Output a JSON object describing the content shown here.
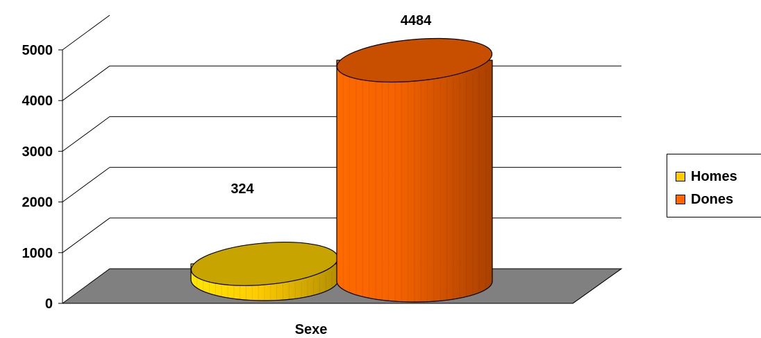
{
  "chart_data": {
    "type": "bar",
    "style": "3d-cylinder",
    "categories": [
      "Sexe"
    ],
    "xlabel": "Sexe",
    "ylim": [
      0,
      5000
    ],
    "yticks": [
      0,
      1000,
      2000,
      3000,
      4000,
      5000
    ],
    "grid": true,
    "legend_position": "right",
    "series": [
      {
        "name": "Homes",
        "values": [
          324
        ],
        "color": "#FFCC00"
      },
      {
        "name": "Dones",
        "values": [
          4484
        ],
        "color": "#FF6600"
      }
    ],
    "floor_color": "#808080"
  }
}
